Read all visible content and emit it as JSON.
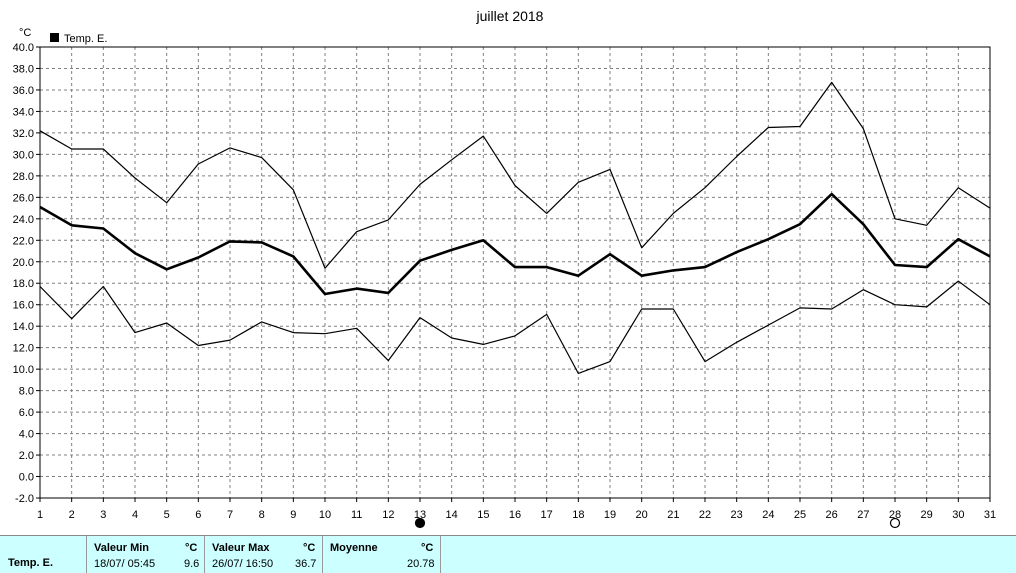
{
  "chart_data": {
    "type": "line",
    "title": "juillet 2018",
    "ylabel": "°C",
    "x": [
      1,
      2,
      3,
      4,
      5,
      6,
      7,
      8,
      9,
      10,
      11,
      12,
      13,
      14,
      15,
      16,
      17,
      18,
      19,
      20,
      21,
      22,
      23,
      24,
      25,
      26,
      27,
      28,
      29,
      30,
      31
    ],
    "xlim": [
      1,
      31
    ],
    "ylim": [
      -2.0,
      40.0
    ],
    "ytick_step": 2.0,
    "grid": true,
    "legend": [
      {
        "name": "Temp. E.",
        "color": "#000000"
      }
    ],
    "legend_position": "top-left",
    "series": [
      {
        "name": "Temp. E.",
        "role": "max",
        "stroke_width": 1.2,
        "values": [
          32.2,
          30.5,
          30.5,
          27.8,
          25.5,
          29.1,
          30.6,
          29.7,
          26.7,
          19.4,
          22.8,
          23.9,
          27.2,
          29.5,
          31.7,
          27.1,
          24.5,
          27.4,
          28.6,
          21.3,
          24.5,
          26.9,
          29.8,
          32.5,
          32.6,
          36.7,
          32.4,
          24.0,
          23.4,
          26.9,
          25.0
        ]
      },
      {
        "name": "Temp. E.",
        "role": "mean",
        "stroke_width": 2.6,
        "values": [
          25.1,
          23.4,
          23.1,
          20.8,
          19.3,
          20.4,
          21.9,
          21.8,
          20.5,
          17.0,
          17.5,
          17.1,
          20.1,
          21.1,
          22.0,
          19.5,
          19.5,
          18.7,
          20.7,
          18.7,
          19.2,
          19.5,
          20.9,
          22.1,
          23.5,
          26.3,
          23.5,
          19.7,
          19.5,
          22.1,
          20.5
        ]
      },
      {
        "name": "Temp. E.",
        "role": "min",
        "stroke_width": 1.2,
        "values": [
          17.7,
          14.7,
          17.7,
          13.4,
          14.3,
          12.2,
          12.7,
          14.4,
          13.4,
          13.3,
          13.8,
          10.8,
          14.8,
          12.9,
          12.3,
          13.1,
          15.1,
          9.6,
          10.7,
          15.6,
          15.6,
          10.7,
          12.5,
          14.1,
          15.7,
          15.6,
          17.4,
          16.0,
          15.8,
          18.2,
          16.0
        ]
      }
    ],
    "moon_markers": [
      {
        "day": 13,
        "type": "new_moon"
      },
      {
        "day": 28,
        "type": "full_moon"
      }
    ]
  },
  "colors": {
    "background": "#ffffff",
    "grid": "#808080",
    "footer_bg": "#ccffff",
    "line": "#000000"
  },
  "footer": {
    "series_label": "Temp. E.",
    "min": {
      "header": "Valeur Min",
      "unit": "°C",
      "datetime": "18/07/  05:45",
      "value": "9.6"
    },
    "max": {
      "header": "Valeur Max",
      "unit": "°C",
      "datetime": "26/07/  16:50",
      "value": "36.7"
    },
    "mean": {
      "header": "Moyenne",
      "unit": "°C",
      "value": "20.78"
    }
  }
}
